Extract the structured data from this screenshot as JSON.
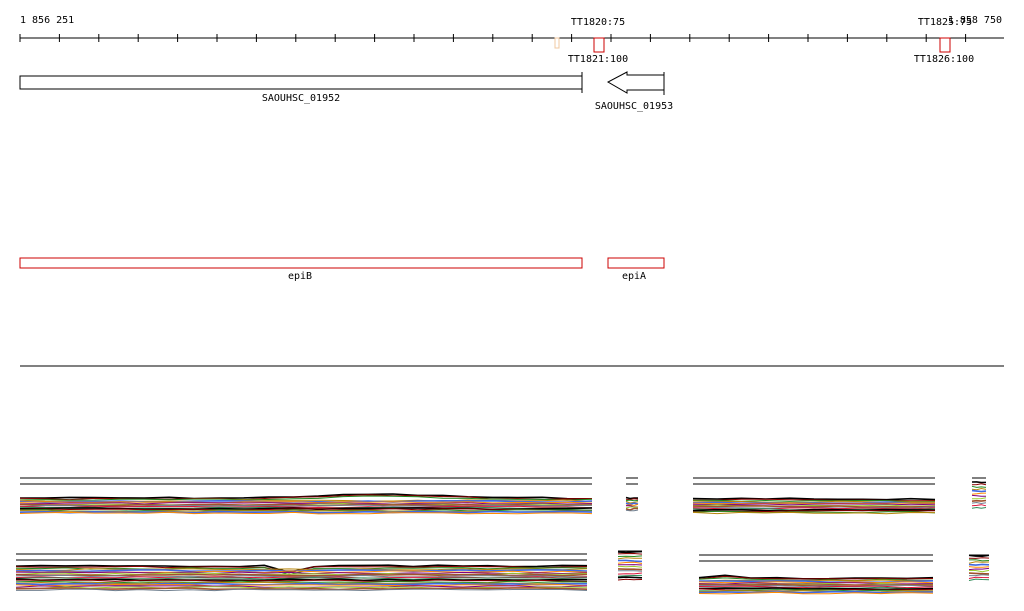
{
  "ruler": {
    "start_label": "1 856 251",
    "end_label": "1 858 750",
    "start": 1856251,
    "end": 1858750
  },
  "terminators": [
    {
      "top_label": "TT1820:75",
      "bottom_label": "TT1821:100",
      "pos": 1856850,
      "strand_color": "#cc0000"
    },
    {
      "top_label": "TT1825:75",
      "bottom_label": "TT1826:100",
      "pos": 1858608,
      "strand_color": "#cc0000"
    }
  ],
  "genes": [
    {
      "id": "SAOUHSC_01952",
      "start": 1856251,
      "end": 1857680,
      "strand": "+"
    },
    {
      "id": "SAOUHSC_01953",
      "start": 1857930,
      "end": 1858139,
      "strand": "-"
    }
  ],
  "annotations": [
    {
      "name": "epiB",
      "start": 1856251,
      "end": 1857680,
      "color": "#cc0000"
    },
    {
      "name": "epiA",
      "start": 1857930,
      "end": 1858139,
      "color": "#cc0000"
    }
  ],
  "colors": {
    "line": "#000000",
    "terminator": "#cc0000",
    "annotation": "#cc0000",
    "coverage_palette": [
      "#000000",
      "#8b0000",
      "#228b22",
      "#b8860b",
      "#4169e1",
      "#ff8c00",
      "#800080",
      "#9acd32",
      "#a0522d",
      "#708090",
      "#dc143c",
      "#2e8b57"
    ]
  }
}
